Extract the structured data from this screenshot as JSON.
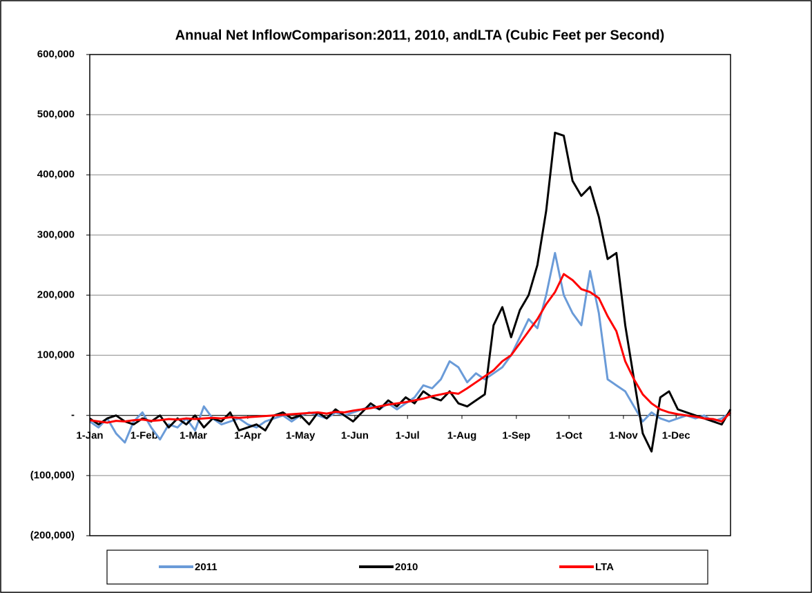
{
  "chart_data": {
    "type": "line",
    "title": "Annual Net InflowComparison:2011, 2010, andLTA (Cubic Feet per Second)",
    "x": [
      0,
      5,
      10,
      15,
      20,
      25,
      30,
      35,
      40,
      45,
      50,
      55,
      60,
      65,
      70,
      75,
      80,
      85,
      90,
      95,
      100,
      105,
      110,
      115,
      120,
      125,
      130,
      135,
      140,
      145,
      150,
      155,
      160,
      165,
      170,
      175,
      180,
      185,
      190,
      195,
      200,
      205,
      210,
      215,
      220,
      225,
      230,
      235,
      240,
      245,
      250,
      255,
      260,
      265,
      270,
      275,
      280,
      285,
      290,
      295,
      300,
      305,
      310,
      315,
      320,
      325,
      330,
      335,
      340,
      345,
      350,
      355,
      360,
      365
    ],
    "series": [
      {
        "name": "2011",
        "color": "#6a9bd8",
        "values": [
          -10000,
          -20000,
          -5000,
          -30000,
          -45000,
          -10000,
          5000,
          -20000,
          -40000,
          -15000,
          -20000,
          -5000,
          -25000,
          15000,
          -5000,
          -15000,
          -10000,
          -5000,
          -15000,
          -20000,
          -10000,
          -5000,
          0,
          -10000,
          0,
          5000,
          0,
          -5000,
          5000,
          0,
          5000,
          10000,
          15000,
          10000,
          20000,
          10000,
          20000,
          30000,
          50000,
          45000,
          60000,
          90000,
          80000,
          55000,
          70000,
          60000,
          70000,
          80000,
          100000,
          130000,
          160000,
          145000,
          200000,
          270000,
          200000,
          170000,
          150000,
          240000,
          170000,
          60000,
          50000,
          40000,
          15000,
          -10000,
          5000,
          -5000,
          -10000,
          -5000,
          0,
          -5000,
          0,
          -10000,
          -5000,
          5000
        ]
      },
      {
        "name": "2010",
        "color": "#000000",
        "values": [
          -5000,
          -15000,
          -5000,
          0,
          -10000,
          -15000,
          -5000,
          -10000,
          0,
          -20000,
          -5000,
          -15000,
          0,
          -20000,
          -5000,
          -10000,
          5000,
          -25000,
          -20000,
          -15000,
          -25000,
          0,
          5000,
          -5000,
          0,
          -15000,
          5000,
          -5000,
          10000,
          0,
          -10000,
          5000,
          20000,
          10000,
          25000,
          15000,
          30000,
          20000,
          40000,
          30000,
          25000,
          40000,
          20000,
          15000,
          25000,
          35000,
          150000,
          180000,
          130000,
          175000,
          200000,
          250000,
          340000,
          470000,
          465000,
          390000,
          365000,
          380000,
          330000,
          260000,
          270000,
          150000,
          60000,
          -30000,
          -60000,
          30000,
          40000,
          10000,
          5000,
          0,
          -5000,
          -10000,
          -15000,
          10000
        ]
      },
      {
        "name": "LTA",
        "color": "#ff0000",
        "values": [
          -8000,
          -10000,
          -12000,
          -9000,
          -10000,
          -8000,
          -7000,
          -9000,
          -8000,
          -6000,
          -7000,
          -5000,
          -6000,
          -5000,
          -4000,
          -5000,
          -3000,
          -4000,
          -3000,
          -2000,
          -1000,
          0,
          1000,
          2000,
          3000,
          4000,
          5000,
          3000,
          6000,
          5000,
          8000,
          10000,
          12000,
          15000,
          18000,
          20000,
          22000,
          25000,
          28000,
          32000,
          35000,
          38000,
          36000,
          45000,
          55000,
          65000,
          75000,
          90000,
          100000,
          120000,
          140000,
          160000,
          185000,
          205000,
          235000,
          225000,
          210000,
          205000,
          195000,
          165000,
          140000,
          90000,
          60000,
          35000,
          20000,
          10000,
          5000,
          2000,
          0,
          -2000,
          -5000,
          -6000,
          -10000,
          5000
        ]
      }
    ],
    "xlim": [
      0,
      365
    ],
    "xticks": [
      {
        "value": 0,
        "label": "1-Jan"
      },
      {
        "value": 31,
        "label": "1-Feb"
      },
      {
        "value": 59,
        "label": "1-Mar"
      },
      {
        "value": 90,
        "label": "1-Apr"
      },
      {
        "value": 120,
        "label": "1-May"
      },
      {
        "value": 151,
        "label": "1-Jun"
      },
      {
        "value": 181,
        "label": "1-Jul"
      },
      {
        "value": 212,
        "label": "1-Aug"
      },
      {
        "value": 243,
        "label": "1-Sep"
      },
      {
        "value": 273,
        "label": "1-Oct"
      },
      {
        "value": 304,
        "label": "1-Nov"
      },
      {
        "value": 334,
        "label": "1-Dec"
      }
    ],
    "ylim": [
      -200000,
      600000
    ],
    "yticks": [
      {
        "value": -200000,
        "label": "(200,000)"
      },
      {
        "value": -100000,
        "label": "(100,000)"
      },
      {
        "value": 0,
        "label": "-"
      },
      {
        "value": 100000,
        "label": "100,000"
      },
      {
        "value": 200000,
        "label": "200,000"
      },
      {
        "value": 300000,
        "label": "300,000"
      },
      {
        "value": 400000,
        "label": "400,000"
      },
      {
        "value": 500000,
        "label": "500,000"
      },
      {
        "value": 600000,
        "label": "600,000"
      }
    ],
    "grid": true,
    "legend": "bottom"
  }
}
